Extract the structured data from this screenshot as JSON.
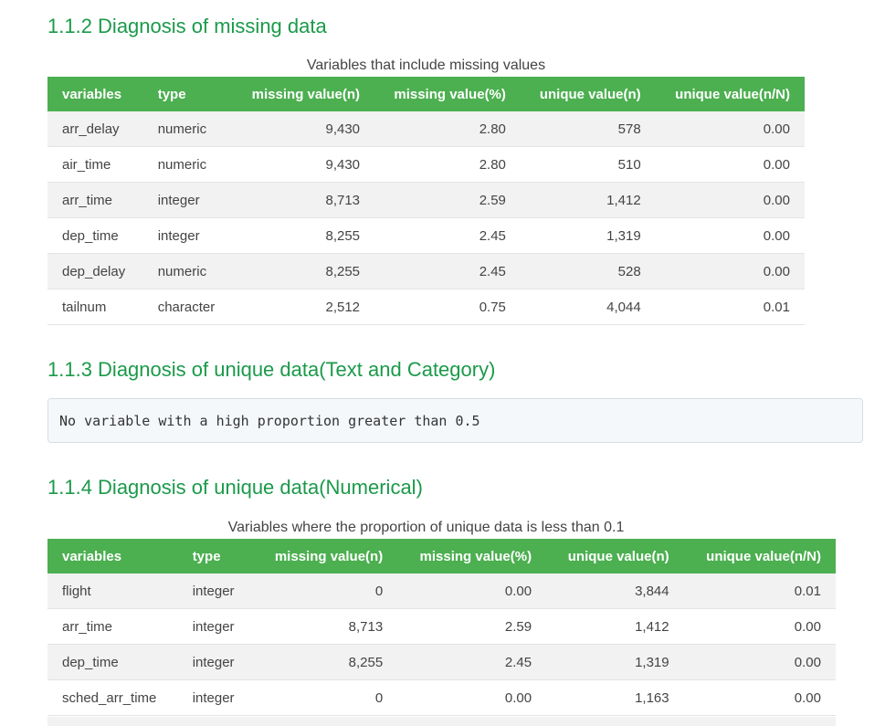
{
  "sections": {
    "s112": {
      "title": "1.1.2 Diagnosis of missing data",
      "caption": "Variables that include missing values",
      "headers": [
        "variables",
        "type",
        "missing value(n)",
        "missing value(%)",
        "unique value(n)",
        "unique value(n/N)"
      ],
      "rows": [
        [
          "arr_delay",
          "numeric",
          "9,430",
          "2.80",
          "578",
          "0.00"
        ],
        [
          "air_time",
          "numeric",
          "9,430",
          "2.80",
          "510",
          "0.00"
        ],
        [
          "arr_time",
          "integer",
          "8,713",
          "2.59",
          "1,412",
          "0.00"
        ],
        [
          "dep_time",
          "integer",
          "8,255",
          "2.45",
          "1,319",
          "0.00"
        ],
        [
          "dep_delay",
          "numeric",
          "8,255",
          "2.45",
          "528",
          "0.00"
        ],
        [
          "tailnum",
          "character",
          "2,512",
          "0.75",
          "4,044",
          "0.01"
        ]
      ]
    },
    "s113": {
      "title": "1.1.3 Diagnosis of unique data(Text and Category)",
      "code": "No variable with a high proportion greater than 0.5"
    },
    "s114": {
      "title": "1.1.4 Diagnosis of unique data(Numerical)",
      "caption": "Variables where the proportion of unique data is less than 0.1",
      "headers": [
        "variables",
        "type",
        "missing value(n)",
        "missing value(%)",
        "unique value(n)",
        "unique value(n/N)"
      ],
      "rows": [
        [
          "flight",
          "integer",
          "0",
          "0.00",
          "3,844",
          "0.01"
        ],
        [
          "arr_time",
          "integer",
          "8,713",
          "2.59",
          "1,412",
          "0.00"
        ],
        [
          "dep_time",
          "integer",
          "8,255",
          "2.45",
          "1,319",
          "0.00"
        ],
        [
          "sched_arr_time",
          "integer",
          "0",
          "0.00",
          "1,163",
          "0.00"
        ]
      ]
    }
  },
  "colors": {
    "heading": "#1b9a4a",
    "header_bg": "#4caf50",
    "stripe": "#f2f2f2",
    "code_bg": "#f5f8fb"
  }
}
